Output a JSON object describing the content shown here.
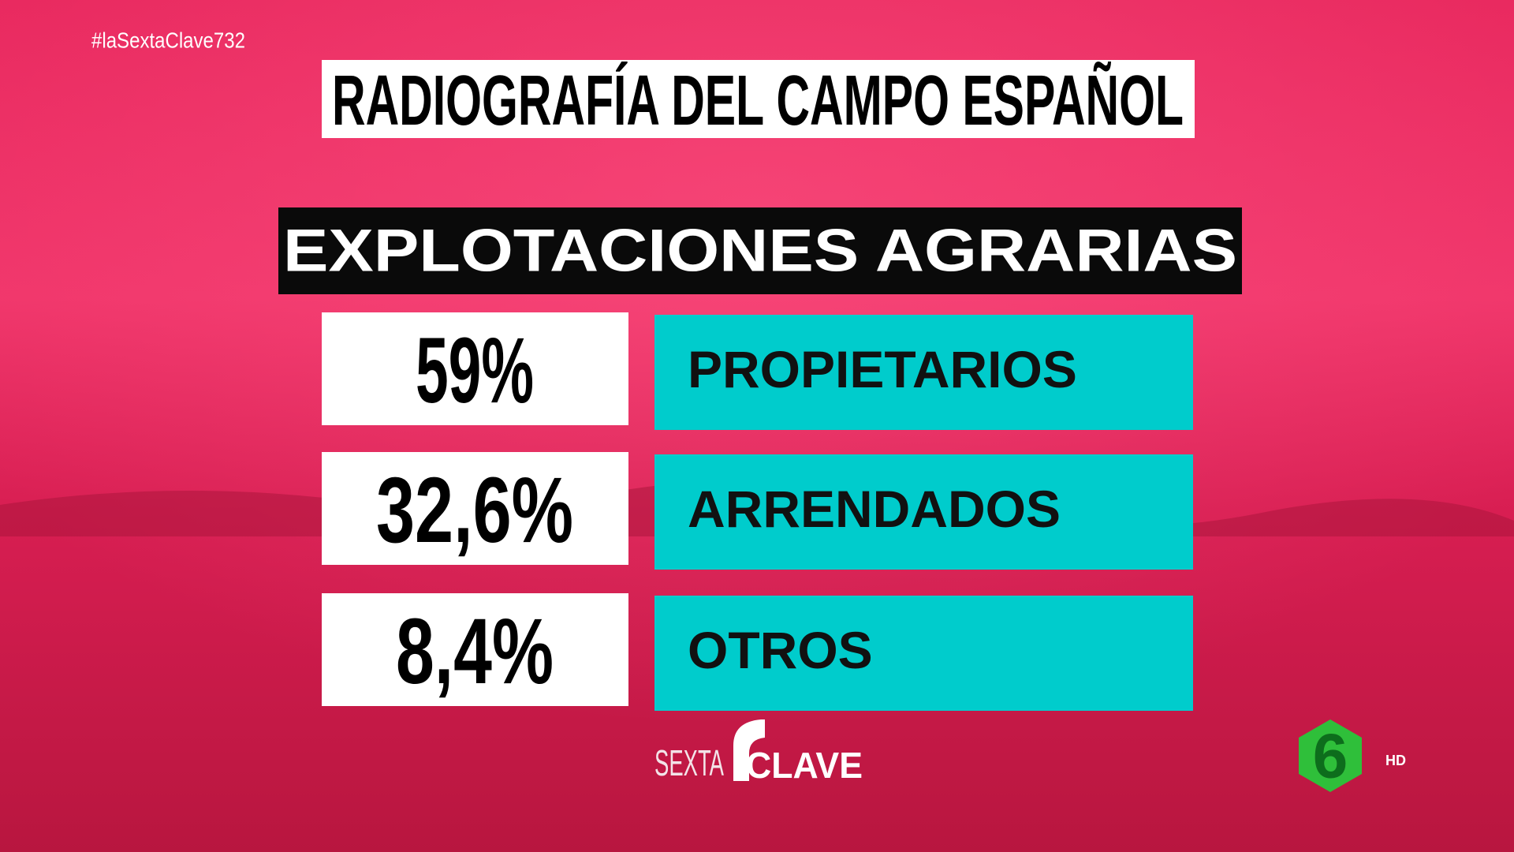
{
  "hashtag": "#laSextaClave732",
  "title": "RADIOGRAFÍA DEL CAMPO ESPAÑOL",
  "subtitle": "EXPLOTACIONES AGRARIAS",
  "rows": [
    {
      "value": "59%",
      "label": "PROPIETARIOS"
    },
    {
      "value": "32,6%",
      "label": "ARRENDADOS"
    },
    {
      "value": "8,4%",
      "label": "OTROS"
    }
  ],
  "logo": {
    "left": "SEXTA",
    "right": "CLAVE"
  },
  "channel": {
    "mark": "6",
    "quality": "HD"
  }
}
